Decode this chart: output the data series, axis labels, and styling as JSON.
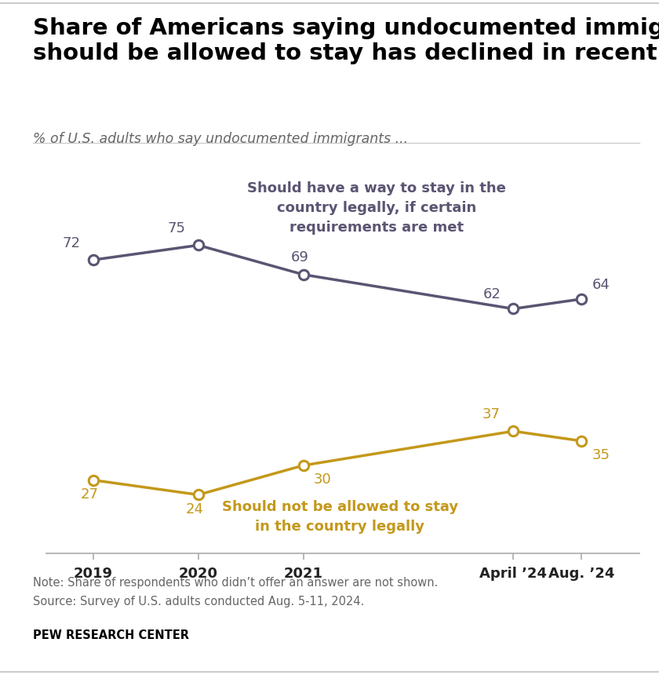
{
  "title": "Share of Americans saying undocumented immigrants\nshould be allowed to stay has declined in recent years",
  "subtitle": "% of U.S. adults who say undocumented immigrants ...",
  "x_labels": [
    "2019",
    "2020",
    "2021",
    "April ’24",
    "Aug. ’24"
  ],
  "x_positions": [
    0,
    1,
    2,
    4,
    4.65
  ],
  "line1_values": [
    72,
    75,
    69,
    62,
    64
  ],
  "line2_values": [
    27,
    24,
    30,
    37,
    35
  ],
  "line1_color": "#5b5472",
  "line2_color": "#c4981a",
  "line1_label": "Should have a way to stay in the\ncountry legally, if certain\nrequirements are met",
  "line2_label": "Should not be allowed to stay\nin the country legally",
  "note_line1": "Note: Share of respondents who didn’t offer an answer are not shown.",
  "note_line2": "Source: Survey of U.S. adults conducted Aug. 5-11, 2024.",
  "source_bold": "PEW RESEARCH CENTER",
  "background_color": "#ffffff",
  "title_fontsize": 21,
  "subtitle_fontsize": 12.5,
  "data_label_fontsize": 13,
  "annotation_fontsize": 13,
  "tick_fontsize": 13,
  "note_fontsize": 10.5
}
